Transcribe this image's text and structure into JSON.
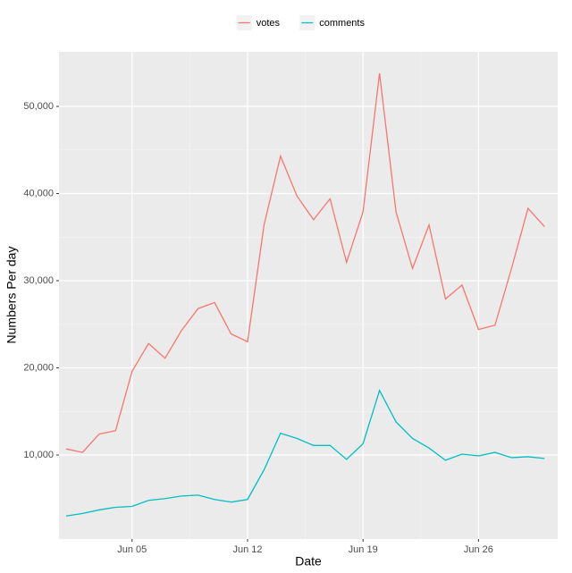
{
  "chart_data": {
    "type": "line",
    "x": [
      1,
      2,
      3,
      4,
      5,
      6,
      7,
      8,
      9,
      10,
      11,
      12,
      13,
      14,
      15,
      16,
      17,
      18,
      19,
      20,
      21,
      22,
      23,
      24,
      25,
      26,
      27,
      28,
      29,
      30
    ],
    "series": [
      {
        "name": "votes",
        "color": "#F8766D",
        "values": [
          10700,
          10300,
          12400,
          12800,
          19600,
          22800,
          21100,
          24300,
          26800,
          27500,
          23900,
          23000,
          36400,
          44300,
          39700,
          37000,
          39400,
          32100,
          37900,
          53800,
          37900,
          31400,
          36400,
          27900,
          29500,
          24400,
          24900,
          31400,
          38300,
          36200
        ]
      },
      {
        "name": "comments",
        "color": "#00BFC4",
        "values": [
          3000,
          3300,
          3700,
          4000,
          4100,
          4800,
          5000,
          5300,
          5400,
          4900,
          4600,
          4900,
          8300,
          12500,
          11900,
          11100,
          11100,
          9500,
          11300,
          17400,
          13800,
          11900,
          10800,
          9400,
          10100,
          9900,
          10300,
          9700,
          9800,
          9600
        ]
      }
    ],
    "xlabel": "Date",
    "ylabel": "Numbers Per day",
    "xlim": [
      0.57,
      30.8
    ],
    "xticks": [
      {
        "value": 5,
        "label": "Jun 05"
      },
      {
        "value": 12,
        "label": "Jun 12"
      },
      {
        "value": 19,
        "label": "Jun 19"
      },
      {
        "value": 26,
        "label": "Jun 26"
      }
    ],
    "ylim": [
      360,
      56260
    ],
    "yticks": [
      {
        "value": 10000,
        "label": "10,000"
      },
      {
        "value": 20000,
        "label": "20,000"
      },
      {
        "value": 30000,
        "label": "30,000"
      },
      {
        "value": 40000,
        "label": "40,000"
      },
      {
        "value": 50000,
        "label": "50,000"
      }
    ],
    "grid": true,
    "legend": "top"
  }
}
